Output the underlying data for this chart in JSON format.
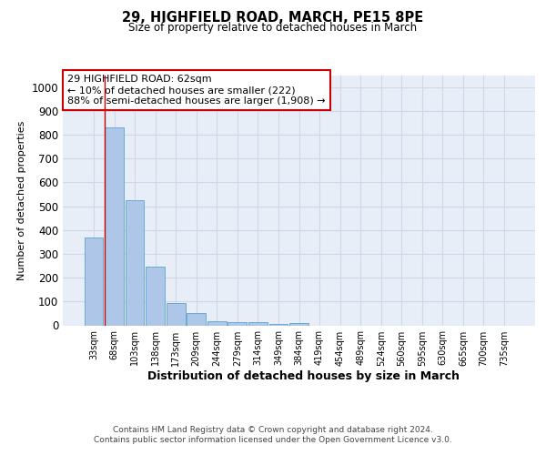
{
  "title": "29, HIGHFIELD ROAD, MARCH, PE15 8PE",
  "subtitle": "Size of property relative to detached houses in March",
  "xlabel": "Distribution of detached houses by size in March",
  "ylabel": "Number of detached properties",
  "footer_line1": "Contains HM Land Registry data © Crown copyright and database right 2024.",
  "footer_line2": "Contains public sector information licensed under the Open Government Licence v3.0.",
  "annotation_line1": "29 HIGHFIELD ROAD: 62sqm",
  "annotation_line2": "← 10% of detached houses are smaller (222)",
  "annotation_line3": "88% of semi-detached houses are larger (1,908) →",
  "bar_labels": [
    "33sqm",
    "68sqm",
    "103sqm",
    "138sqm",
    "173sqm",
    "209sqm",
    "244sqm",
    "279sqm",
    "314sqm",
    "349sqm",
    "384sqm",
    "419sqm",
    "454sqm",
    "489sqm",
    "524sqm",
    "560sqm",
    "595sqm",
    "630sqm",
    "665sqm",
    "700sqm",
    "735sqm"
  ],
  "bar_values": [
    370,
    830,
    525,
    245,
    95,
    50,
    18,
    12,
    12,
    5,
    8,
    0,
    0,
    0,
    0,
    0,
    0,
    0,
    0,
    0,
    0
  ],
  "bar_color": "#aec6e8",
  "bar_edge_color": "#6aaad4",
  "ylim": [
    0,
    1050
  ],
  "yticks": [
    0,
    100,
    200,
    300,
    400,
    500,
    600,
    700,
    800,
    900,
    1000
  ],
  "property_line_color": "#cc0000",
  "annotation_box_color": "#cc0000",
  "grid_color": "#d0d8e8",
  "background_color": "#e8eef8"
}
